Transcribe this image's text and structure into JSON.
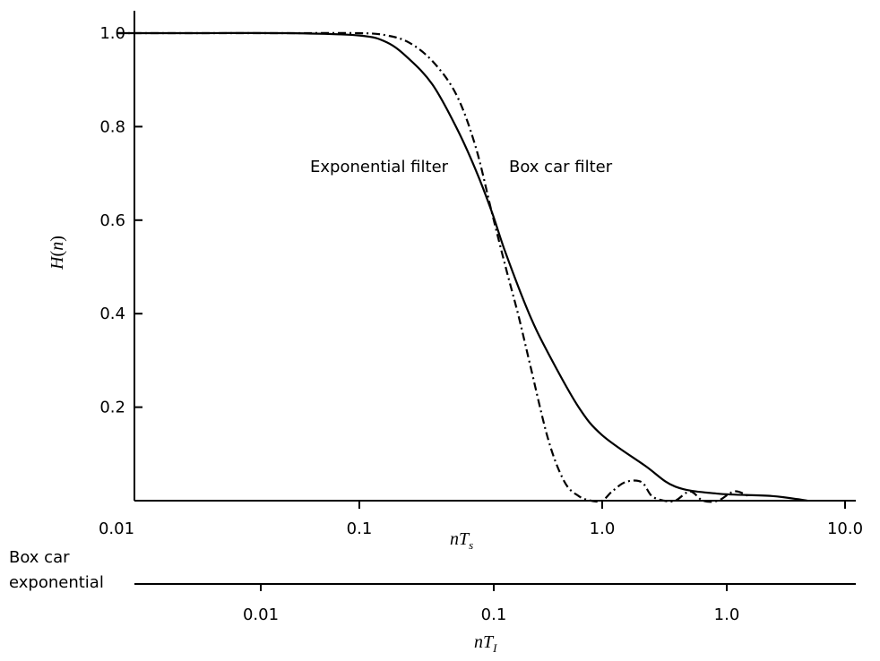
{
  "chart_data": {
    "type": "line",
    "title": "",
    "ylabel_main": "H",
    "ylabel_arg": "n",
    "xlabel_main": "nT",
    "xlabel_sub": "s",
    "xscale": "log",
    "xlim": [
      0.01,
      10
    ],
    "ylim": [
      0,
      1.05
    ],
    "y_ticks": [
      {
        "value": 1.0,
        "label": "1.0"
      },
      {
        "value": 0.8,
        "label": "0.8"
      },
      {
        "value": 0.6,
        "label": "0.6"
      },
      {
        "value": 0.4,
        "label": "0.4"
      },
      {
        "value": 0.2,
        "label": "0.2"
      }
    ],
    "x_ticks": [
      {
        "value": 0.01,
        "label": "0.01"
      },
      {
        "value": 0.1,
        "label": "0.1"
      },
      {
        "value": 1.0,
        "label": "1.0"
      },
      {
        "value": 10.0,
        "label": "10.0"
      }
    ],
    "series": [
      {
        "name": "Exponential filter",
        "style": "solid",
        "x": [
          0.01,
          0.02,
          0.05,
          0.1,
          0.13,
          0.16,
          0.2,
          0.25,
          0.3,
          0.35,
          0.4,
          0.5,
          0.6,
          0.8,
          1.0,
          1.5,
          2.0,
          3.0,
          5.0,
          7.0
        ],
        "y": [
          1.0,
          1.0,
          1.0,
          0.995,
          0.98,
          0.945,
          0.89,
          0.8,
          0.71,
          0.62,
          0.53,
          0.4,
          0.315,
          0.2,
          0.14,
          0.075,
          0.03,
          0.015,
          0.01,
          0.0
        ]
      },
      {
        "name": "Box car filter",
        "style": "dashdot",
        "x": [
          0.01,
          0.02,
          0.05,
          0.1,
          0.13,
          0.16,
          0.2,
          0.25,
          0.3,
          0.35,
          0.4,
          0.45,
          0.5,
          0.6,
          0.7,
          0.8,
          0.9,
          1.0,
          1.1,
          1.25,
          1.45,
          1.6,
          1.8,
          2.0,
          2.3,
          2.6,
          3.0,
          3.5,
          4.0
        ],
        "y": [
          1.0,
          1.0,
          1.0,
          1.0,
          0.995,
          0.98,
          0.94,
          0.87,
          0.76,
          0.62,
          0.5,
          0.4,
          0.3,
          0.13,
          0.04,
          0.01,
          0.0,
          0.0,
          0.02,
          0.04,
          0.04,
          0.01,
          0.0,
          0.0,
          0.02,
          0.0,
          0.0,
          0.02,
          0.01
        ]
      }
    ],
    "annotations": [
      {
        "text": "Exponential filter",
        "x": 0.2,
        "y": 0.72
      },
      {
        "text": "Box car filter",
        "x": 0.7,
        "y": 0.72
      }
    ],
    "secondary_axis": {
      "labels": [
        "Box car",
        "exponential"
      ],
      "ticks": [
        {
          "value": 0.01,
          "label": "0.01"
        },
        {
          "value": 0.1,
          "label": "0.1"
        },
        {
          "value": 1.0,
          "label": "1.0"
        }
      ],
      "xlabel_main": "nT",
      "xlabel_sub": "I"
    }
  }
}
